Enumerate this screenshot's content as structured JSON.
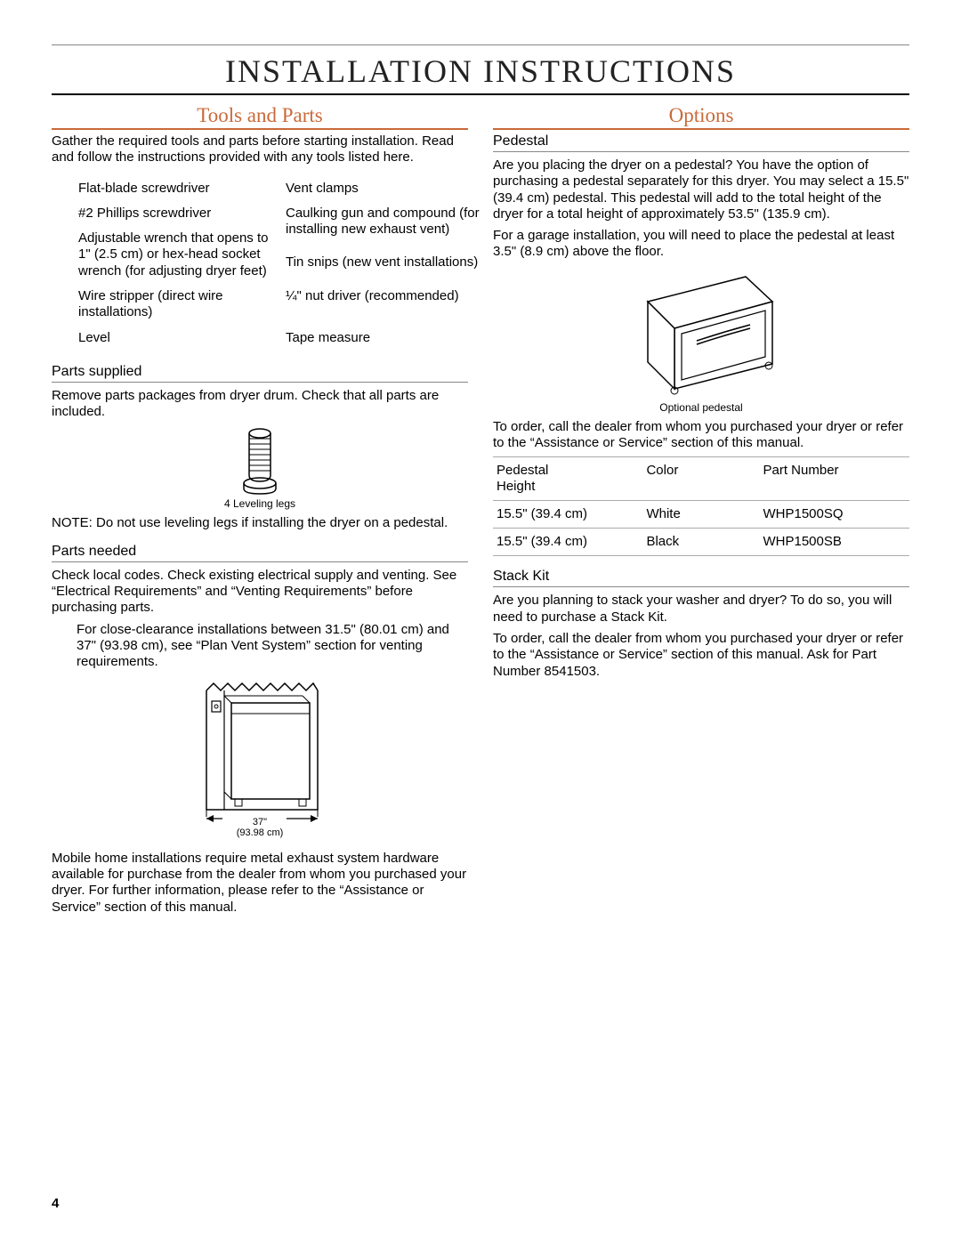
{
  "page_number": "4",
  "main_title": "INSTALLATION INSTRUCTIONS",
  "tools_parts": {
    "heading": "Tools and Parts",
    "intro": "Gather the required tools and parts before starting installation. Read and follow the instructions provided with any tools listed here.",
    "tool_rows": [
      [
        "Flat-blade screwdriver",
        "Vent clamps"
      ],
      [
        "#2 Phillips screwdriver",
        "Caulking gun and compound (for installing new exhaust vent)"
      ],
      [
        "Adjustable wrench that opens to 1\" (2.5 cm) or hex-head socket wrench (for adjusting dryer feet)",
        "Tin snips (new vent installations)"
      ],
      [
        "Wire stripper (direct wire installations)",
        "¼\" nut driver (recommended)"
      ],
      [
        "Level",
        "Tape measure"
      ]
    ],
    "parts_supplied_heading": "Parts supplied",
    "parts_supplied_text": "Remove parts packages from dryer drum. Check that all parts are included.",
    "legs_caption": "4 Leveling legs",
    "note_text": "NOTE: Do not use leveling legs if installing the dryer on a pedestal.",
    "parts_needed_heading": "Parts needed",
    "parts_needed_text": "Check local codes. Check existing electrical supply and venting. See “Electrical Requirements” and “Venting Requirements” before purchasing parts.",
    "close_clearance": "For close-clearance installations between 31.5\" (80.01 cm) and 37\" (93.98 cm), see “Plan Vent System” section for venting requirements.",
    "fig_dim_top": "37\"",
    "fig_dim_bottom": "(93.98 cm)",
    "mobile_home": "Mobile home installations require metal exhaust system hardware available for purchase from the dealer from whom you purchased your dryer. For further information, please refer to the  “Assistance or Service” section of this manual."
  },
  "options": {
    "heading": "Options",
    "pedestal_heading": "Pedestal",
    "pedestal_p1": "Are you placing the dryer on a pedestal? You have the option of purchasing a pedestal separately for this dryer. You may select a 15.5\" (39.4 cm) pedestal. This pedestal will add to the total height of the dryer for a total height of approximately 53.5\" (135.9 cm).",
    "pedestal_p2": "For a garage installation, you will need to place the pedestal at least 3.5\" (8.9 cm) above the floor.",
    "pedestal_caption": "Optional pedestal",
    "order_text": "To order, call the dealer from whom you purchased your dryer or refer to the “Assistance or Service” section of this manual.",
    "table_headers": [
      "Pedestal Height",
      "Color",
      "Part Number"
    ],
    "table_rows": [
      [
        "15.5\" (39.4 cm)",
        "White",
        "WHP1500SQ"
      ],
      [
        "15.5\" (39.4 cm)",
        "Black",
        "WHP1500SB"
      ]
    ],
    "stack_heading": "Stack Kit",
    "stack_p1": "Are you planning to stack your washer and dryer? To do so, you will need to purchase a Stack Kit.",
    "stack_p2": "To order, call the dealer from whom you purchased your dryer or refer to the “Assistance or Service” section of this manual. Ask for Part Number 8541503."
  }
}
